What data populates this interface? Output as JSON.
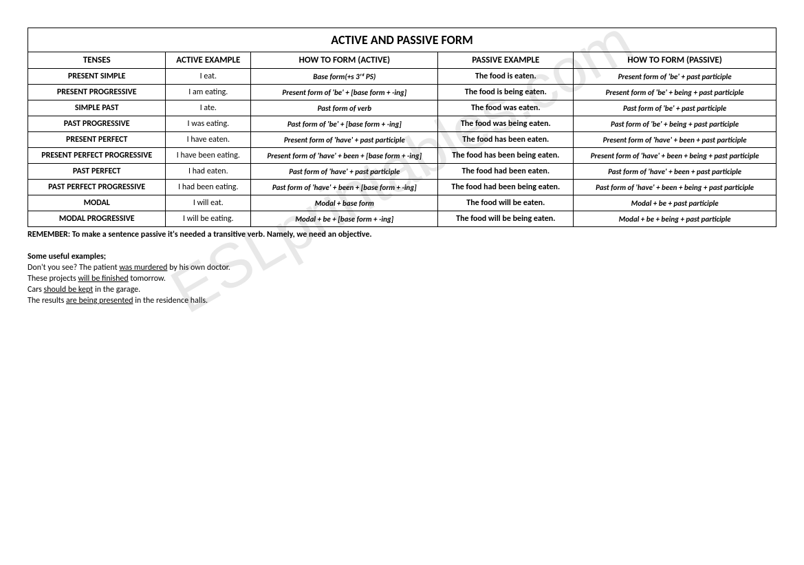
{
  "watermark": "ESLprintables.com",
  "table": {
    "title": "ACTIVE AND PASSIVE FORM",
    "headers": {
      "tenses": "TENSES",
      "active_example": "ACTIVE EXAMPLE",
      "how_active": "HOW TO FORM (ACTIVE)",
      "passive_example": "PASSIVE EXAMPLE",
      "how_passive": "HOW TO FORM (PASSIVE)"
    },
    "rows": [
      {
        "tense": "PRESENT SIMPLE",
        "active": "I eat.",
        "how_active": "Base form(+s 3ʳᵈ PS)",
        "passive": "The food is eaten.",
        "how_passive": "Present form of 'be' + past participle"
      },
      {
        "tense": "PRESENT PROGRESSIVE",
        "active": "I am eating.",
        "how_active": "Present form of 'be' + [base form + -ing]",
        "passive": "The food is being eaten.",
        "how_passive": "Present form of 'be' + being + past participle"
      },
      {
        "tense": "SIMPLE PAST",
        "active": "I ate.",
        "how_active": "Past form of verb",
        "passive": "The food was eaten.",
        "how_passive": "Past form of 'be' + past participle"
      },
      {
        "tense": "PAST PROGRESSIVE",
        "active": "I was eating.",
        "how_active": "Past form of 'be' + [base form + -ing]",
        "passive": "The food was being eaten.",
        "how_passive": "Past form of 'be' + being + past participle"
      },
      {
        "tense": "PRESENT PERFECT",
        "active": "I have eaten.",
        "how_active": "Present form of 'have' + past participle",
        "passive": "The food has been eaten.",
        "how_passive": "Present form of 'have' + been + past participle"
      },
      {
        "tense": "PRESENT PERFECT PROGRESSIVE",
        "active": "I have been eating.",
        "how_active": "Present form of 'have' + been + [base form + -ing]",
        "passive": "The food has been being eaten.",
        "how_passive": "Present form of 'have' + been + being + past participle"
      },
      {
        "tense": "PAST PERFECT",
        "active": "I had eaten.",
        "how_active": "Past form of 'have' + past participle",
        "passive": "The food had been eaten.",
        "how_passive": "Past form of 'have' + been + past participle"
      },
      {
        "tense": "PAST PERFECT PROGRESSIVE",
        "active": "I had been eating.",
        "how_active": "Past form of 'have' + been + [base form + -ing]",
        "passive": "The food had been being eaten.",
        "how_passive": "Past form of 'have' + been + being + past participle"
      },
      {
        "tense": "MODAL",
        "active": "I will eat.",
        "how_active": "Modal + base form",
        "passive": "The food will be eaten.",
        "how_passive": "Modal + be + past participle"
      },
      {
        "tense": "MODAL PROGRESSIVE",
        "active": "I will be eating.",
        "how_active": "Modal + be + [base form + -ing]",
        "passive": "The food will be being eaten.",
        "how_passive": "Modal + be + being + past participle"
      }
    ]
  },
  "notes": {
    "remember": "REMEMBER: To make a sentence passive it's needed a transitive verb. Namely, we need an objective.",
    "examples_title": "Some useful examples;",
    "examples": [
      {
        "pre": "Don't you see? The patient ",
        "underline": "was murdered",
        "post": " by his own doctor."
      },
      {
        "pre": "These projects ",
        "underline": "will be finished",
        "post": " tomorrow."
      },
      {
        "pre": "Cars ",
        "underline": "should be kept",
        "post": " in the garage."
      },
      {
        "pre": "The results ",
        "underline": "are being presented",
        "post": " in the residence halls."
      }
    ]
  },
  "styles": {
    "title_fontsize": 18,
    "table_fontsize": 13,
    "form_fontsize": 11,
    "notes_fontsize": 12,
    "border_color": "#000000",
    "background_color": "#ffffff",
    "watermark_color": "#e8e8e8"
  }
}
